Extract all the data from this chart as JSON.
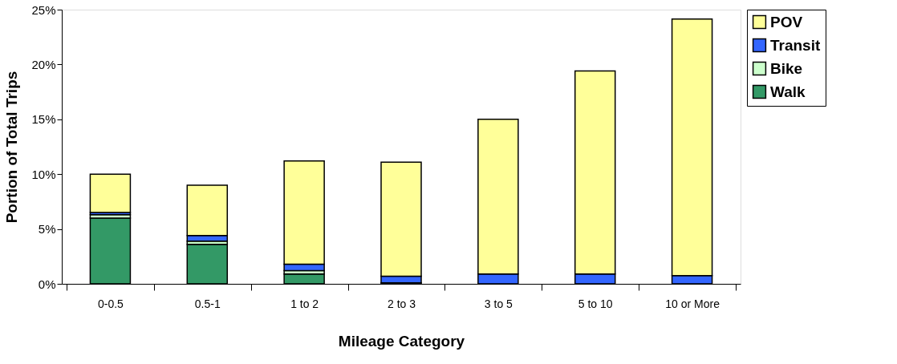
{
  "chart_data": {
    "type": "bar",
    "stacked": true,
    "xlabel": "Mileage Category",
    "ylabel": "Portion of Total Trips",
    "categories": [
      "0-0.5",
      "0.5-1",
      "1 to 2",
      "2 to 3",
      "3 to 5",
      "5 to 10",
      "10 or More"
    ],
    "series": [
      {
        "name": "Walk",
        "color": "#339966",
        "values": [
          6.0,
          3.6,
          0.9,
          0.1,
          null,
          null,
          null
        ]
      },
      {
        "name": "Bike",
        "color": "#ccffcc",
        "values": [
          0.3,
          0.3,
          0.3,
          null,
          null,
          null,
          null
        ]
      },
      {
        "name": "Transit",
        "color": "#3366ff",
        "values": [
          0.2,
          0.5,
          0.6,
          0.6,
          0.9,
          0.9,
          0.75
        ]
      },
      {
        "name": "POV",
        "color": "#ffff99",
        "values": [
          3.5,
          4.6,
          9.4,
          10.4,
          14.1,
          18.5,
          23.4
        ]
      }
    ],
    "ylim": [
      0,
      25
    ],
    "yticks": [
      {
        "value": 0,
        "label": "0%"
      },
      {
        "value": 5,
        "label": "5%"
      },
      {
        "value": 10,
        "label": "10%"
      },
      {
        "value": 15,
        "label": "15%"
      },
      {
        "value": 20,
        "label": "20%"
      },
      {
        "value": 25,
        "label": "25%"
      }
    ],
    "grid": false,
    "legend": "right"
  }
}
